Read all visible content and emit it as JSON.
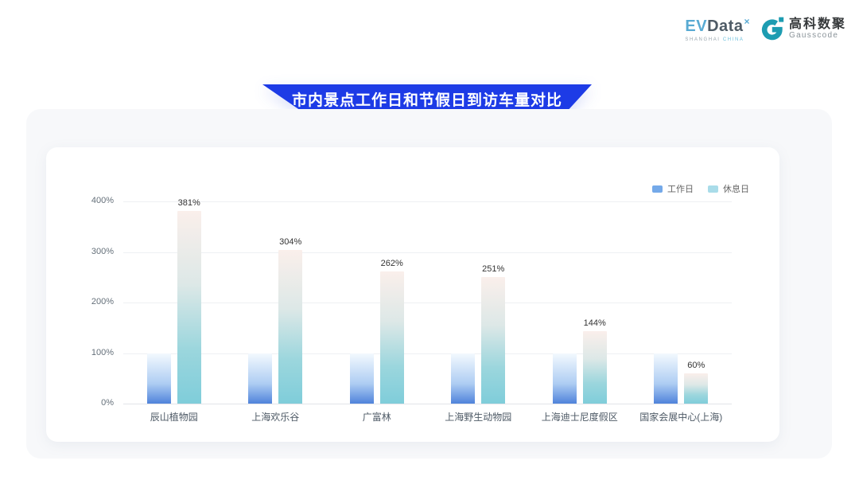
{
  "header": {
    "evdata": {
      "ev": "EV",
      "data": "Data",
      "sup": "×",
      "tagline_left": "SHANGHAI",
      "tagline_right": "CHINA"
    },
    "gausscode": {
      "cn": "高科数聚",
      "en": "Gausscode"
    }
  },
  "banner": {
    "title": "市内景点工作日和节假日到访车量对比"
  },
  "colors": {
    "banner_blue": "#1d3be6",
    "panel_bg": "#f7f8fa",
    "card_bg": "#ffffff",
    "gridline": "#eef0f3",
    "evdata_blue": "#58aad3",
    "gausscode_teal": "#1d9cb1"
  },
  "chart_data": {
    "type": "bar",
    "title": "市内景点工作日和节假日到访车量对比",
    "categories": [
      "辰山植物园",
      "上海欢乐谷",
      "广富林",
      "上海野生动物园",
      "上海迪士尼度假区",
      "国家会展中心(上海)"
    ],
    "series": [
      {
        "name": "工作日",
        "values": [
          100,
          100,
          100,
          100,
          100,
          100
        ],
        "data_labels": null,
        "legend_color": "#74a9e9",
        "gradient_stops": [
          "#f3f9fe",
          "#aecdf3 60%",
          "#4f83db"
        ]
      },
      {
        "name": "休息日",
        "values": [
          381,
          304,
          262,
          251,
          144,
          60
        ],
        "data_labels": [
          "381%",
          "304%",
          "262%",
          "251%",
          "144%",
          "60%"
        ],
        "legend_color": "#a9dce9",
        "gradient_stops": [
          "#faefeb",
          "#dde8e7 38%",
          "#9bd6dd 72%",
          "#7fcdda"
        ]
      }
    ],
    "xlabel": "",
    "ylabel": "",
    "ylim": [
      0,
      400
    ],
    "yticks": [
      "0%",
      "100%",
      "200%",
      "300%",
      "400%"
    ],
    "grid": true,
    "legend_position": "top-right"
  }
}
